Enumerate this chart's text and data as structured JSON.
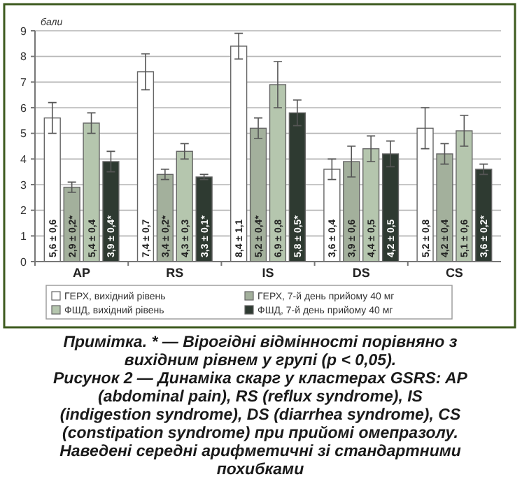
{
  "chart_data": {
    "type": "bar",
    "ylabel": "бали",
    "categories": [
      "AP",
      "RS",
      "IS",
      "DS",
      "CS"
    ],
    "ylim": [
      0,
      9
    ],
    "yticks": [
      0,
      1,
      2,
      3,
      4,
      5,
      6,
      7,
      8,
      9
    ],
    "grid": "y",
    "legend": "bottom",
    "series": [
      {
        "name": "ГЕРХ, вихідний рівень",
        "color": "#ffffff",
        "values": [
          5.6,
          7.4,
          8.4,
          3.6,
          5.2
        ],
        "errors": [
          0.6,
          0.7,
          0.5,
          0.4,
          0.8
        ],
        "value_labels": [
          "5,6 ± 0,6",
          "7,4 ± 0,7",
          "8,4 ± 1,1",
          "3,6 ± 0,4",
          "5,2 ± 0,8"
        ]
      },
      {
        "name": "ГЕРХ, 7-й день прийому 40 мг",
        "color": "#a3b09c",
        "values": [
          2.9,
          3.4,
          5.2,
          3.9,
          4.2
        ],
        "errors": [
          0.2,
          0.2,
          0.4,
          0.6,
          0.4
        ],
        "value_labels": [
          "2,9 ± 0,2*",
          "3,4 ± 0,2*",
          "5,2 ± 0,4*",
          "3,9 ± 0,6",
          "4,2 ± 0,4"
        ]
      },
      {
        "name": "ФШД, вихідний рівень",
        "color": "#b5c6ae",
        "values": [
          5.4,
          4.3,
          6.9,
          4.4,
          5.1
        ],
        "errors": [
          0.4,
          0.3,
          0.9,
          0.5,
          0.6
        ],
        "value_labels": [
          "5,4 ± 0,4",
          "4,3 ± 0,3",
          "6,9 ± 0,8",
          "4,4 ± 0,5",
          "5,1 ± 0,6"
        ]
      },
      {
        "name": "ФШД, 7-й день прийому 40 мг",
        "color": "#2e3a31",
        "values": [
          3.9,
          3.3,
          5.8,
          4.2,
          3.6
        ],
        "errors": [
          0.4,
          0.1,
          0.5,
          0.5,
          0.2
        ],
        "value_labels": [
          "3,9 ± 0,4*",
          "3,3 ± 0,1*",
          "5,8 ± 0,5*",
          "4,2 ± 0,5",
          "3,6 ± 0,2*"
        ]
      }
    ],
    "annotations": [
      "Примітка. * — Вірогідні відмінності порівняно з вихідним рівнем у групі (p < 0,05).",
      "Рисунок 2 — Динаміка скарг у кластерах GSRS: AP (abdominal pain), RS (reflux syndrome), IS (indigestion syndrome), DS (diarrhea syndrome), CS (constipation syndrome) при прийомі омепразолу. Наведені середні арифметичні зі стандартними похибками"
    ]
  }
}
